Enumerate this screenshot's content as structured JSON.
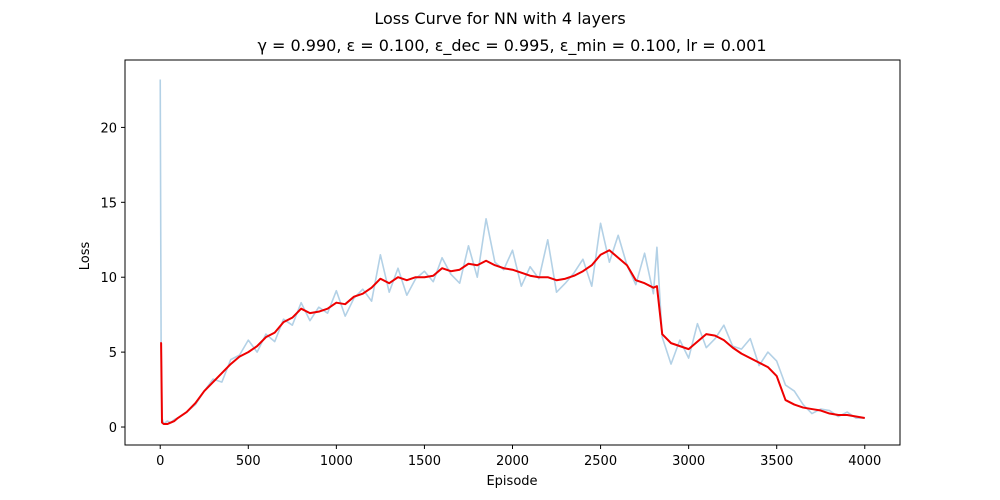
{
  "chart_data": {
    "type": "line",
    "title": "Loss Curve for NN with 4 layers",
    "subtitle": "γ = 0.990, ε = 0.100, ε_dec = 0.995, ε_min = 0.100, lr = 0.001",
    "xlabel": "Episode",
    "ylabel": "Loss",
    "xlim": [
      -200,
      4200
    ],
    "ylim": [
      -1.2,
      24.5
    ],
    "xticks": [
      0,
      500,
      1000,
      1500,
      2000,
      2500,
      3000,
      3500,
      4000
    ],
    "yticks": [
      0,
      5,
      10,
      15,
      20
    ],
    "xtick_labels": [
      "0",
      "500",
      "1000",
      "1500",
      "2000",
      "2500",
      "3000",
      "3500",
      "4000"
    ],
    "ytick_labels": [
      "0",
      "5",
      "10",
      "15",
      "20"
    ],
    "grid": false,
    "legend": "none",
    "series": [
      {
        "role": "raw",
        "color": "#b3d1e6",
        "x": [
          0,
          5,
          10,
          20,
          40,
          60,
          80,
          100,
          150,
          200,
          250,
          300,
          350,
          400,
          450,
          500,
          550,
          600,
          650,
          700,
          750,
          800,
          850,
          900,
          950,
          1000,
          1050,
          1100,
          1150,
          1200,
          1250,
          1300,
          1350,
          1400,
          1450,
          1500,
          1550,
          1600,
          1650,
          1700,
          1750,
          1800,
          1850,
          1900,
          1950,
          2000,
          2050,
          2100,
          2150,
          2200,
          2250,
          2300,
          2350,
          2400,
          2450,
          2500,
          2550,
          2600,
          2650,
          2700,
          2750,
          2800,
          2820,
          2850,
          2900,
          2950,
          3000,
          3050,
          3100,
          3150,
          3200,
          3250,
          3300,
          3350,
          3400,
          3450,
          3500,
          3550,
          3600,
          3650,
          3700,
          3750,
          3800,
          3850,
          3900,
          3950,
          4000
        ],
        "values": [
          23.2,
          5.6,
          0.6,
          0.2,
          0.4,
          0.3,
          0.5,
          0.6,
          1.0,
          1.5,
          2.4,
          3.2,
          3.0,
          4.5,
          4.8,
          5.8,
          5.0,
          6.2,
          5.7,
          7.2,
          6.8,
          8.3,
          7.1,
          8.0,
          7.6,
          9.1,
          7.4,
          8.6,
          9.2,
          8.4,
          11.5,
          9.0,
          10.6,
          8.8,
          9.9,
          10.4,
          9.7,
          11.3,
          10.2,
          9.6,
          12.1,
          10.0,
          13.9,
          11.0,
          10.5,
          11.8,
          9.4,
          10.7,
          9.9,
          12.5,
          9.0,
          9.6,
          10.3,
          11.2,
          9.4,
          13.6,
          11.0,
          12.8,
          10.8,
          9.5,
          11.6,
          8.9,
          12.0,
          6.0,
          4.2,
          5.8,
          4.6,
          6.9,
          5.3,
          5.9,
          6.8,
          5.4,
          5.2,
          5.9,
          4.1,
          5.0,
          4.4,
          2.8,
          2.4,
          1.5,
          0.9,
          1.2,
          1.1,
          0.7,
          1.0,
          0.6,
          0.6
        ]
      },
      {
        "role": "smoothed",
        "color": "#ee0000",
        "x": [
          0,
          5,
          10,
          20,
          40,
          60,
          80,
          100,
          150,
          200,
          250,
          300,
          350,
          400,
          450,
          500,
          550,
          600,
          650,
          700,
          750,
          800,
          850,
          900,
          950,
          1000,
          1050,
          1100,
          1150,
          1200,
          1250,
          1300,
          1350,
          1400,
          1450,
          1500,
          1550,
          1600,
          1650,
          1700,
          1750,
          1800,
          1850,
          1900,
          1950,
          2000,
          2050,
          2100,
          2150,
          2200,
          2250,
          2300,
          2350,
          2400,
          2450,
          2500,
          2550,
          2600,
          2650,
          2700,
          2750,
          2800,
          2820,
          2850,
          2900,
          2950,
          3000,
          3050,
          3100,
          3150,
          3200,
          3250,
          3300,
          3350,
          3400,
          3450,
          3500,
          3550,
          3600,
          3650,
          3700,
          3750,
          3800,
          3850,
          3900,
          3950,
          4000
        ],
        "values": [
          5.6,
          5.6,
          0.3,
          0.2,
          0.2,
          0.3,
          0.4,
          0.6,
          1.0,
          1.6,
          2.4,
          3.0,
          3.6,
          4.2,
          4.7,
          5.0,
          5.4,
          6.0,
          6.3,
          7.0,
          7.3,
          7.9,
          7.6,
          7.7,
          7.9,
          8.3,
          8.2,
          8.7,
          8.9,
          9.3,
          9.9,
          9.6,
          10.0,
          9.8,
          10.0,
          10.0,
          10.1,
          10.6,
          10.4,
          10.5,
          10.9,
          10.8,
          11.1,
          10.8,
          10.6,
          10.5,
          10.3,
          10.1,
          10.0,
          10.0,
          9.8,
          9.9,
          10.1,
          10.4,
          10.8,
          11.5,
          11.8,
          11.3,
          10.8,
          9.8,
          9.6,
          9.3,
          9.4,
          6.2,
          5.6,
          5.4,
          5.2,
          5.7,
          6.2,
          6.1,
          5.8,
          5.3,
          4.9,
          4.6,
          4.3,
          4.0,
          3.4,
          1.8,
          1.5,
          1.3,
          1.2,
          1.1,
          0.9,
          0.8,
          0.8,
          0.7,
          0.6
        ]
      }
    ]
  }
}
